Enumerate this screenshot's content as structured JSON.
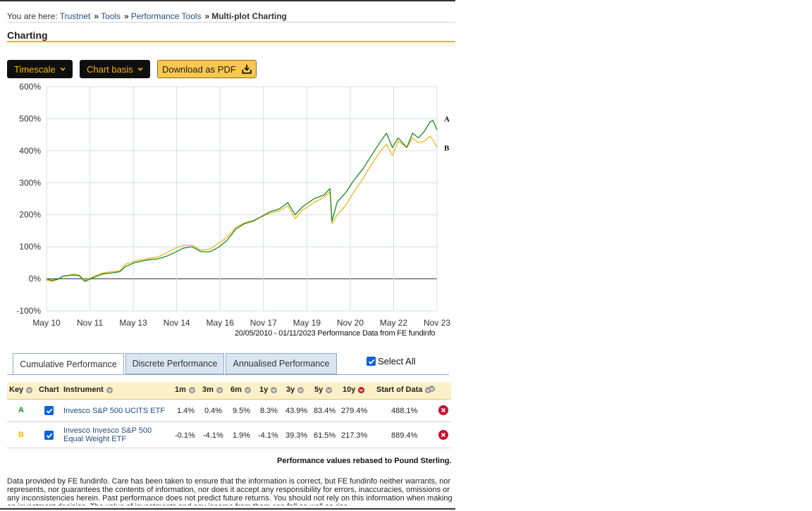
{
  "breadcrumb": {
    "prefix": "You are here:",
    "items": [
      "Trustnet",
      "Tools",
      "Performance Tools"
    ],
    "current": "Multi-plot Charting"
  },
  "section_title": "Charting",
  "toolbar": {
    "timescale_label": "Timescale",
    "chart_basis_label": "Chart basis",
    "download_label": "Download as PDF"
  },
  "chart_caption": "20/05/2010 - 01/11/2023 Performance Data from FE fundinfo",
  "chart_data": {
    "type": "line",
    "x_labels": [
      "May 10",
      "Nov 11",
      "May 13",
      "Nov 14",
      "May 16",
      "Nov 17",
      "May 19",
      "Nov 20",
      "May 22",
      "Nov 23"
    ],
    "y_ticks": [
      "600%",
      "500%",
      "400%",
      "300%",
      "200%",
      "100%",
      "0%",
      "-100%"
    ],
    "ylim": [
      -100,
      600
    ],
    "xlim": [
      2010.38,
      2023.84
    ],
    "grid": true,
    "series": [
      {
        "name": "A",
        "color": "#1a8a1a",
        "points": [
          [
            2010.38,
            0
          ],
          [
            2010.55,
            -5
          ],
          [
            2010.75,
            -2
          ],
          [
            2010.95,
            8
          ],
          [
            2011.3,
            12
          ],
          [
            2011.5,
            10
          ],
          [
            2011.7,
            -8
          ],
          [
            2011.9,
            0
          ],
          [
            2012.3,
            15
          ],
          [
            2012.6,
            18
          ],
          [
            2012.9,
            22
          ],
          [
            2013.1,
            38
          ],
          [
            2013.4,
            50
          ],
          [
            2013.8,
            58
          ],
          [
            2014.2,
            62
          ],
          [
            2014.5,
            70
          ],
          [
            2014.8,
            82
          ],
          [
            2015.1,
            96
          ],
          [
            2015.4,
            100
          ],
          [
            2015.7,
            85
          ],
          [
            2016.0,
            84
          ],
          [
            2016.3,
            98
          ],
          [
            2016.6,
            120
          ],
          [
            2016.9,
            155
          ],
          [
            2017.2,
            172
          ],
          [
            2017.5,
            180
          ],
          [
            2017.9,
            200
          ],
          [
            2018.1,
            210
          ],
          [
            2018.4,
            218
          ],
          [
            2018.7,
            238
          ],
          [
            2018.95,
            200
          ],
          [
            2019.2,
            225
          ],
          [
            2019.6,
            250
          ],
          [
            2019.95,
            262
          ],
          [
            2020.15,
            282
          ],
          [
            2020.22,
            180
          ],
          [
            2020.4,
            240
          ],
          [
            2020.7,
            270
          ],
          [
            2020.95,
            305
          ],
          [
            2021.3,
            345
          ],
          [
            2021.6,
            388
          ],
          [
            2021.9,
            430
          ],
          [
            2022.1,
            455
          ],
          [
            2022.3,
            410
          ],
          [
            2022.5,
            440
          ],
          [
            2022.8,
            410
          ],
          [
            2023.0,
            455
          ],
          [
            2023.2,
            440
          ],
          [
            2023.4,
            460
          ],
          [
            2023.6,
            490
          ],
          [
            2023.7,
            495
          ],
          [
            2023.84,
            465
          ]
        ]
      },
      {
        "name": "B",
        "color": "#f0b420",
        "points": [
          [
            2010.38,
            -4
          ],
          [
            2010.55,
            -8
          ],
          [
            2010.75,
            -3
          ],
          [
            2010.95,
            8
          ],
          [
            2011.3,
            14
          ],
          [
            2011.5,
            12
          ],
          [
            2011.7,
            -5
          ],
          [
            2011.9,
            3
          ],
          [
            2012.3,
            18
          ],
          [
            2012.6,
            22
          ],
          [
            2012.9,
            25
          ],
          [
            2013.1,
            45
          ],
          [
            2013.4,
            55
          ],
          [
            2013.8,
            62
          ],
          [
            2014.2,
            68
          ],
          [
            2014.5,
            80
          ],
          [
            2014.8,
            95
          ],
          [
            2015.1,
            104
          ],
          [
            2015.4,
            105
          ],
          [
            2015.7,
            90
          ],
          [
            2016.0,
            92
          ],
          [
            2016.3,
            110
          ],
          [
            2016.6,
            130
          ],
          [
            2016.9,
            160
          ],
          [
            2017.2,
            175
          ],
          [
            2017.5,
            182
          ],
          [
            2017.9,
            198
          ],
          [
            2018.1,
            205
          ],
          [
            2018.4,
            212
          ],
          [
            2018.7,
            228
          ],
          [
            2018.95,
            188
          ],
          [
            2019.2,
            215
          ],
          [
            2019.6,
            238
          ],
          [
            2019.95,
            255
          ],
          [
            2020.15,
            272
          ],
          [
            2020.22,
            172
          ],
          [
            2020.4,
            200
          ],
          [
            2020.7,
            230
          ],
          [
            2020.95,
            268
          ],
          [
            2021.3,
            315
          ],
          [
            2021.6,
            360
          ],
          [
            2021.9,
            400
          ],
          [
            2022.1,
            420
          ],
          [
            2022.3,
            385
          ],
          [
            2022.5,
            430
          ],
          [
            2022.8,
            410
          ],
          [
            2023.0,
            440
          ],
          [
            2023.2,
            425
          ],
          [
            2023.4,
            430
          ],
          [
            2023.6,
            445
          ],
          [
            2023.7,
            435
          ],
          [
            2023.84,
            410
          ]
        ]
      }
    ]
  },
  "tabs": {
    "cumulative": "Cumulative Performance",
    "discrete": "Discrete Performance",
    "annualised": "Annualised Performance"
  },
  "select_all_label": "Select All",
  "table": {
    "headers": {
      "key": "Key",
      "chart": "Chart",
      "instrument": "Instrument",
      "m1": "1m",
      "m3": "3m",
      "m6": "6m",
      "y1": "1y",
      "y3": "3y",
      "y5": "5y",
      "y10": "10y",
      "start": "Start of Data"
    },
    "rows": [
      {
        "key": "A",
        "key_color": "#1a8a1a",
        "instrument_line1": "Invesco S&P 500 UCITS ETF",
        "instrument_line2": "",
        "m1": "1.4%",
        "m3": "0.4%",
        "m6": "9.5%",
        "y1": "8.3%",
        "y3": "43.9%",
        "y5": "83.4%",
        "y10": "279.4%",
        "start": "488.1%"
      },
      {
        "key": "B",
        "key_color": "#f0b420",
        "instrument_line1": "Invesco Invesco S&P 500",
        "instrument_line2": "Equal Weight ETF",
        "m1": "-0.1%",
        "m3": "-4.1%",
        "m6": "1.9%",
        "y1": "-4.1%",
        "y3": "39.3%",
        "y5": "61.5%",
        "y10": "217.3%",
        "start": "889.4%"
      }
    ]
  },
  "rebased_note": "Performance values rebased to Pound Sterling.",
  "disclaimer": "Data provided by FE fundinfo. Care has been taken to ensure that the information is correct, but FE fundinfo neither warrants, nor represents, nor guarantees the contents of information, nor does it accept any responsibility for errors, inaccuracies, omissions or any inconsistencies herein. Past performance does not predict future returns. You should not rely on this information when making an investment decision. The value of investments and any income from them can fall as well as rise."
}
